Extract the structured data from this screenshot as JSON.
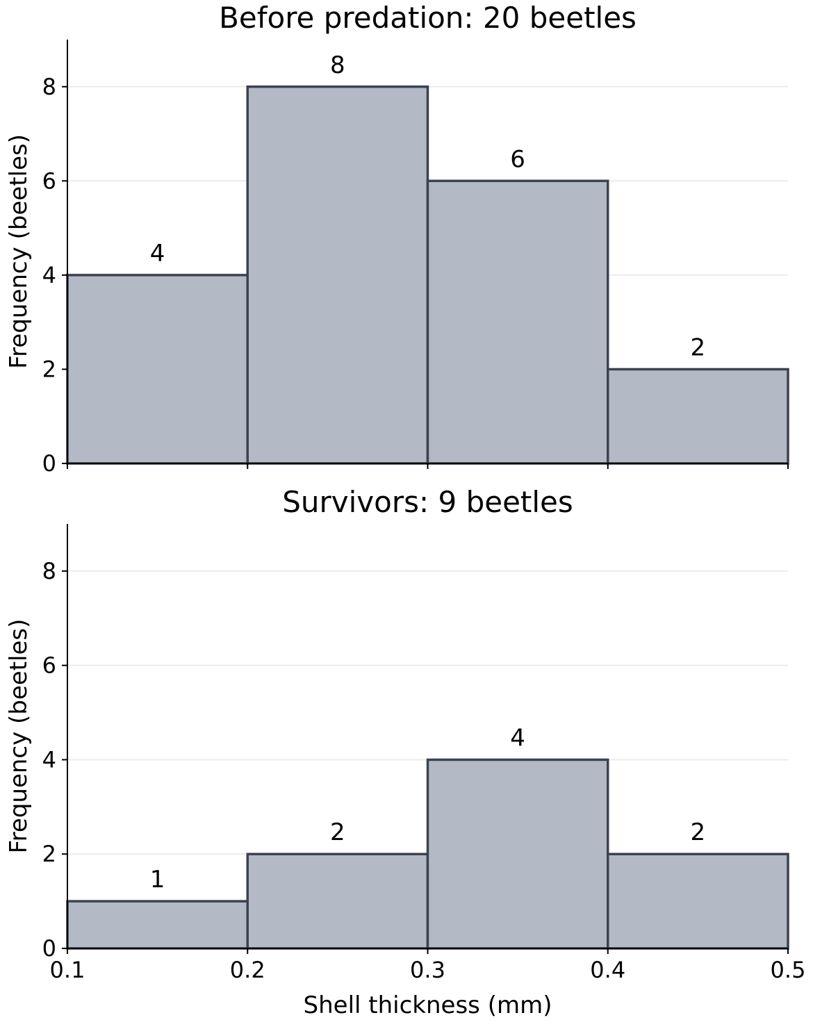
{
  "chart_data": [
    {
      "type": "bar",
      "title": "Before predation: 20 beetles",
      "xlabel": "",
      "ylabel": "Frequency (beetles)",
      "bin_edges": [
        0.1,
        0.2,
        0.3,
        0.4,
        0.5
      ],
      "values": [
        4,
        8,
        6,
        2
      ],
      "ylim": [
        0,
        9
      ],
      "yticks": [
        "0",
        "2",
        "4",
        "6",
        "8"
      ],
      "xticks": [],
      "grid": "horizontal"
    },
    {
      "type": "bar",
      "title": "Survivors: 9 beetles",
      "xlabel": "Shell thickness (mm)",
      "ylabel": "Frequency (beetles)",
      "bin_edges": [
        0.1,
        0.2,
        0.3,
        0.4,
        0.5
      ],
      "values": [
        1,
        2,
        4,
        2
      ],
      "ylim": [
        0,
        9
      ],
      "yticks": [
        "0",
        "2",
        "4",
        "6",
        "8"
      ],
      "xticks": [
        "0.1",
        "0.2",
        "0.3",
        "0.4",
        "0.5"
      ],
      "grid": "horizontal"
    }
  ],
  "colors": {
    "bar_fill": "#b3bac5",
    "bar_edge": "#3b4250",
    "grid": "#ebebeb",
    "axis": "#000000"
  }
}
